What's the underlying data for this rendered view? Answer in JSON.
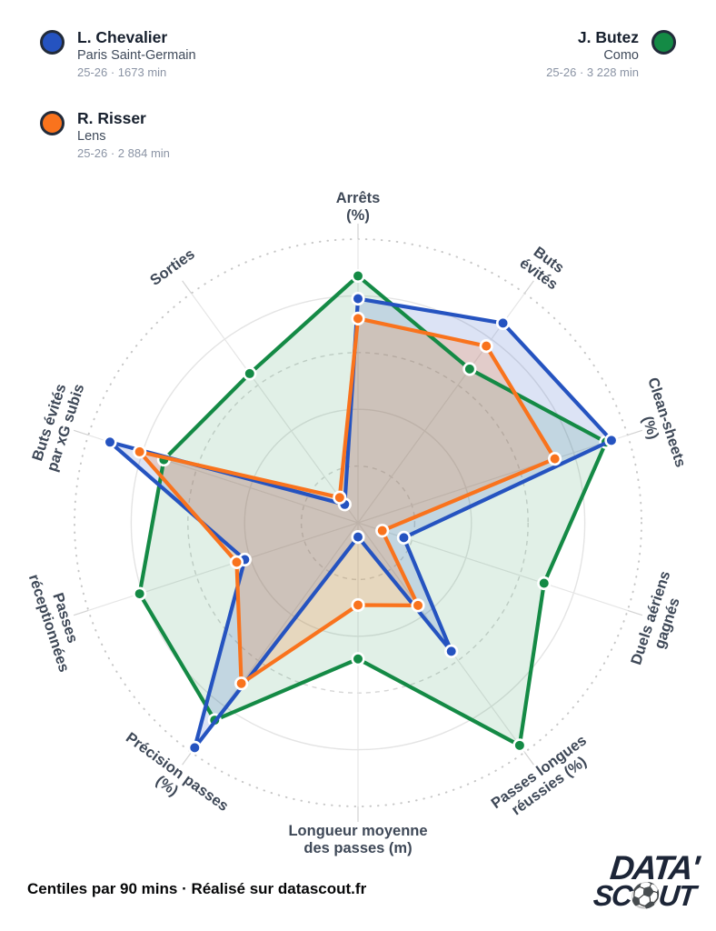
{
  "legend": {
    "players": [
      {
        "name": "L. Chevalier",
        "team": "Paris Saint-Germain",
        "meta": "25-26 · 1673 min",
        "color": "#2553c0"
      },
      {
        "name": "J. Butez",
        "team": "Como",
        "meta": "25-26 · 3 228 min",
        "color": "#148a45"
      },
      {
        "name": "R. Risser",
        "team": "Lens",
        "meta": "25-26 · 2 884 min",
        "color": "#f9731d"
      }
    ]
  },
  "chart_data": {
    "type": "radar",
    "title": "",
    "units": "percentile (0-100)",
    "scale_min": 0,
    "scale_max": 100,
    "grid_levels": [
      20,
      40,
      60,
      80,
      100
    ],
    "grid_on": true,
    "categories": [
      "Arrêts (%)",
      "Buts évités",
      "Clean-sheets (%)",
      "Duels aériens gagnés",
      "Passes longues réussies (%)",
      "Longueur moyenne des passes (m)",
      "Précision passes (%)",
      "Passes réceptionnées",
      "Buts évités par xG subis",
      "Sorties"
    ],
    "axes": [
      {
        "label_lines": [
          "Arrêts",
          "(%)"
        ]
      },
      {
        "label_lines": [
          "Buts",
          "évités"
        ]
      },
      {
        "label_lines": [
          "Clean-sheets",
          "(%)"
        ]
      },
      {
        "label_lines": [
          "Duels aériens",
          "gagnés"
        ]
      },
      {
        "label_lines": [
          "Passes longues",
          "réussies (%)"
        ]
      },
      {
        "label_lines": [
          "Longueur moyenne",
          "des passes (m)"
        ]
      },
      {
        "label_lines": [
          "Précision passes",
          "(%)"
        ]
      },
      {
        "label_lines": [
          "Passes",
          "réceptionnées"
        ]
      },
      {
        "label_lines": [
          "Buts évités",
          "par xG subis"
        ]
      },
      {
        "label_lines": [
          "Sorties"
        ]
      }
    ],
    "series": [
      {
        "name": "L. Chevalier",
        "color": "#2553c0",
        "fill_opacity": 0.16,
        "values": [
          79,
          87,
          94,
          17,
          56,
          5,
          98,
          42,
          92,
          8
        ]
      },
      {
        "name": "R. Risser",
        "color": "#f9731d",
        "fill_opacity": 0.2,
        "values": [
          72,
          77,
          73,
          9,
          36,
          29,
          70,
          45,
          81,
          11
        ]
      },
      {
        "name": "J. Butez",
        "color": "#148a45",
        "fill_opacity": 0.13,
        "values": [
          87,
          67,
          92,
          69,
          97,
          48,
          86,
          81,
          72,
          65
        ]
      }
    ],
    "legend_position": "top",
    "label_color": "#3e4857",
    "grid_color": "#d8d8d8"
  },
  "footer": {
    "note": "Centiles par 90 mins · Réalisé sur datascout.fr"
  },
  "logo": {
    "line1": "DATA'",
    "line2_prefix": "SC",
    "ball": "⚽",
    "line2_suffix": "UT"
  }
}
